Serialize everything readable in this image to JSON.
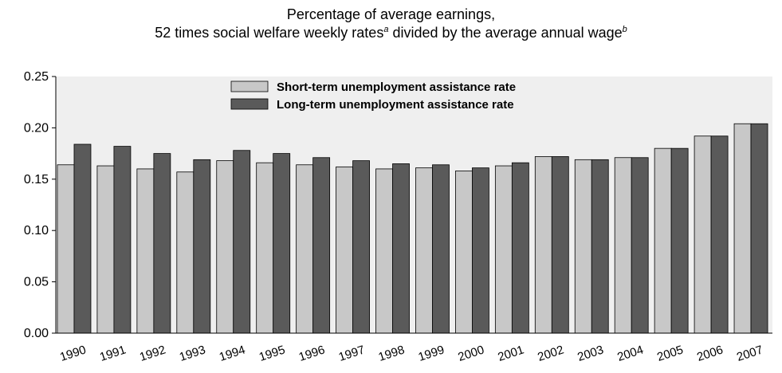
{
  "chart_data": {
    "type": "bar",
    "title_line1": "Percentage of average earnings,",
    "title_line2_main": "52 times social welfare weekly rates",
    "title_line2_sup_a": "a",
    "title_line2_mid": " divided by the average annual wage",
    "title_line2_sup_b": "b",
    "categories": [
      "1990",
      "1991",
      "1992",
      "1993",
      "1994",
      "1995",
      "1996",
      "1997",
      "1998",
      "1999",
      "2000",
      "2001",
      "2002",
      "2003",
      "2004",
      "2005",
      "2006",
      "2007"
    ],
    "series": [
      {
        "name": "Short-term unemployment assistance rate",
        "color": "#c8c8c8",
        "values": [
          0.164,
          0.163,
          0.16,
          0.157,
          0.168,
          0.166,
          0.164,
          0.162,
          0.16,
          0.161,
          0.158,
          0.163,
          0.172,
          0.169,
          0.171,
          0.18,
          0.192,
          0.204
        ]
      },
      {
        "name": "Long-term unemployment assistance rate",
        "color": "#5a5a5a",
        "values": [
          0.184,
          0.182,
          0.175,
          0.169,
          0.178,
          0.175,
          0.171,
          0.168,
          0.165,
          0.164,
          0.161,
          0.166,
          0.172,
          0.169,
          0.171,
          0.18,
          0.192,
          0.204
        ]
      }
    ],
    "yticks": [
      "0.00",
      "0.05",
      "0.10",
      "0.15",
      "0.20",
      "0.25"
    ],
    "ylim": [
      0,
      0.25
    ],
    "grid": false,
    "legend_position": "top-center",
    "plot_background": "#efefef"
  }
}
